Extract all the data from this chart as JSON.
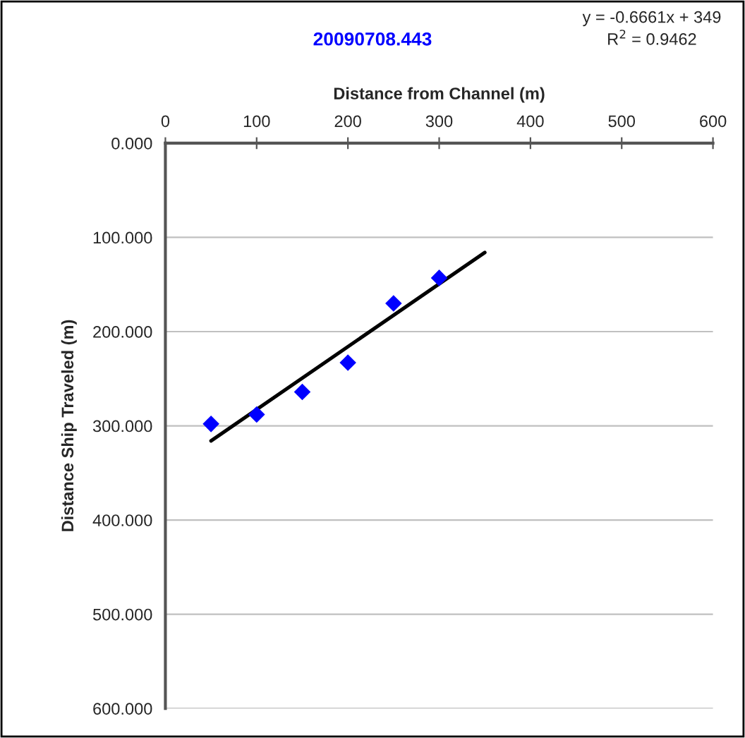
{
  "chart_data": {
    "type": "scatter",
    "title": "20090708.443",
    "xlabel": "Distance from Channel (m)",
    "ylabel": "Distance Ship Traveled (m)",
    "annotations": [
      "y = -0.6661x + 349",
      "R$^{2}$ = 0.9462"
    ],
    "series": [
      {
        "type": "scatter",
        "color": "#0000ff",
        "marker": "diamond",
        "x": [
          50,
          100,
          150,
          200,
          250,
          300
        ],
        "values": [
          298,
          288,
          264,
          233,
          170,
          143
        ]
      },
      {
        "type": "line",
        "color": "#000000",
        "line_style": "solid",
        "marker": "none",
        "x": [
          50,
          350
        ],
        "values": [
          316,
          116
        ]
      }
    ],
    "xlim": [
      0,
      600
    ],
    "xticks": [
      0,
      100,
      200,
      300,
      400,
      500,
      600
    ],
    "ylim": [
      600,
      0
    ],
    "yticks": [
      {
        "value": 0,
        "label": "0.000"
      },
      {
        "value": 100,
        "label": "100.000"
      },
      {
        "value": 200,
        "label": "200.000"
      },
      {
        "value": 300,
        "label": "300.000"
      },
      {
        "value": 400,
        "label": "400.000"
      },
      {
        "value": 500,
        "label": "500.000"
      },
      {
        "value": 600,
        "label": "600.000"
      }
    ],
    "grid": "y",
    "legend": false
  }
}
